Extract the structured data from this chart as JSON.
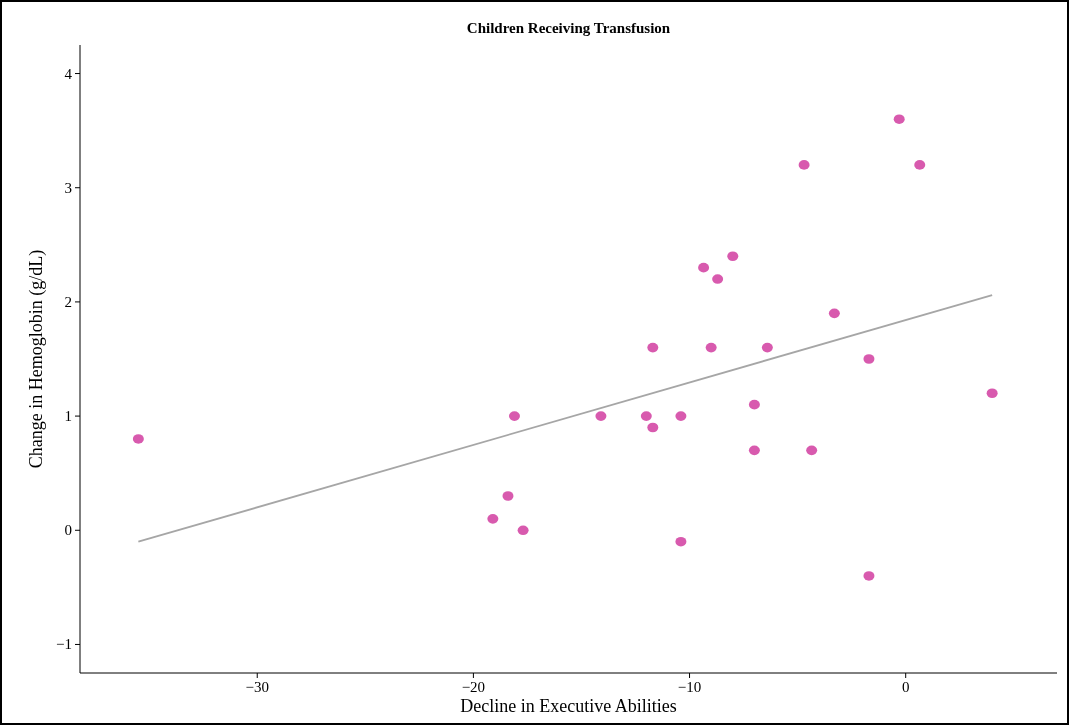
{
  "chart_data": {
    "type": "scatter",
    "title": "Children Receiving Transfusion",
    "xlabel": "Decline in Executive Abilities",
    "ylabel": "Change in Hemoglobin (g/dL)",
    "xlim": [
      -38.2,
      7.0
    ],
    "ylim": [
      -1.25,
      4.25
    ],
    "xticks": [
      {
        "value": -30,
        "label": "−30"
      },
      {
        "value": -20,
        "label": "−20"
      },
      {
        "value": -10,
        "label": "−10"
      },
      0
    ],
    "yticks": [
      {
        "value": -1,
        "label": "−1"
      },
      0,
      1,
      2,
      3,
      4
    ],
    "grid": false,
    "series": [
      {
        "marker": "circle",
        "color": "#d85aae",
        "x": [
          -35.5,
          -19.1,
          -18.4,
          -18.1,
          -17.7,
          -14.1,
          -12.0,
          -11.7,
          -11.7,
          -10.4,
          -10.4,
          -9.35,
          -9.0,
          -8.7,
          -8.0,
          -7.0,
          -7.0,
          -6.4,
          -4.7,
          -4.35,
          -3.3,
          -1.7,
          -1.7,
          -0.3,
          0.65,
          4.0
        ],
        "values": [
          0.8,
          0.1,
          0.3,
          1.0,
          0.0,
          1.0,
          1.0,
          0.9,
          1.6,
          1.0,
          -0.1,
          2.3,
          1.6,
          2.2,
          2.4,
          1.1,
          0.7,
          1.6,
          3.2,
          0.7,
          1.9,
          1.5,
          -0.4,
          3.6,
          3.2,
          1.2
        ]
      },
      {
        "type": "line",
        "color": "#a6a6a6",
        "x": [
          -35.5,
          4.0
        ],
        "values": [
          -0.1,
          2.06
        ]
      }
    ]
  }
}
